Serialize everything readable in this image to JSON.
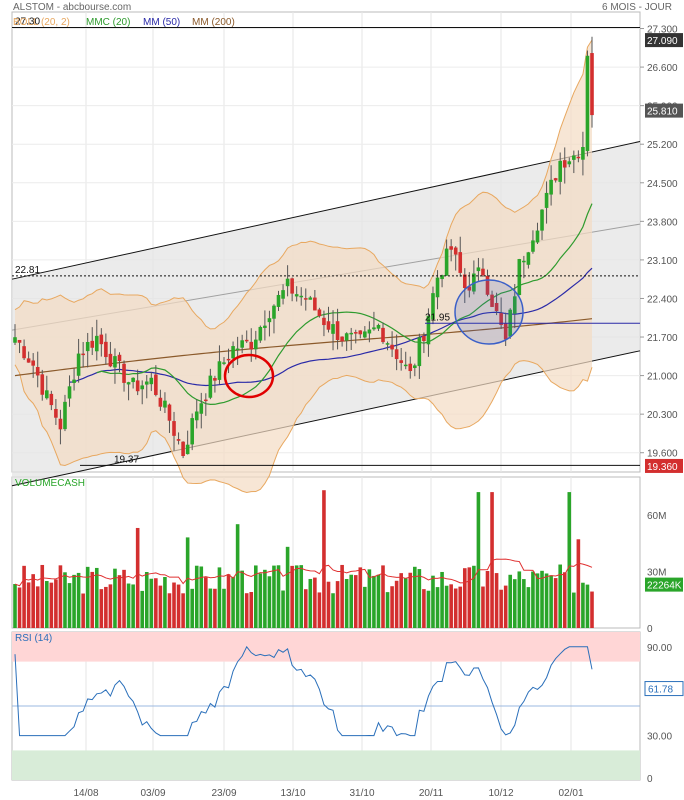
{
  "header": {
    "title": "ALSTOM - abcbourse.com",
    "period": "6 MOIS - JOUR"
  },
  "colors": {
    "up": "#2aa52a",
    "down": "#d32f2f",
    "boll": "#e8a860",
    "bollFill": "#f3dcc3",
    "mmc20": "#2e9b2e",
    "mm50": "#2a2aa8",
    "mm200": "#8b5a2b",
    "channel": "#e4e4e4",
    "rsiHigh": "#ffd6d6",
    "rsiLow": "#d8ecd8",
    "rsiLine": "#2a6fba",
    "volMA": "#e03030",
    "annotRed": "#e00000",
    "annotBlue": "#3a5fc8"
  },
  "legend": [
    {
      "label": "BOLL (20, 2)",
      "color": "#e8a860"
    },
    {
      "label": "MMC (20)",
      "color": "#2e9b2e"
    },
    {
      "label": "MM (50)",
      "color": "#2a2aa8"
    },
    {
      "label": "MM (200)",
      "color": "#8b5a2b"
    }
  ],
  "chart_data": {
    "type": "candlestick",
    "price_ticks": [
      "27.300",
      "26.600",
      "25.900",
      "25.200",
      "24.500",
      "23.800",
      "23.100",
      "22.400",
      "21.700",
      "21.000",
      "20.300",
      "19.600"
    ],
    "price_range": [
      19.25,
      27.6
    ],
    "last_price": "25.810",
    "high_label": "27.090",
    "low_label": "19.360",
    "annotations": {
      "high_line": "27.30",
      "mid_line": "22.81",
      "low_line": "19.37",
      "point": "21.95"
    },
    "x_labels": [
      "14/08",
      "03/09",
      "23/09",
      "13/10",
      "31/10",
      "20/11",
      "10/12",
      "02/01"
    ],
    "volume_title": "VOLUMECASH",
    "volume_ticks": [
      "60M",
      "30M",
      "0"
    ],
    "volume_last": "22264K",
    "rsi_title": "RSI (14)",
    "rsi_ticks": [
      "90.00",
      "30.00",
      "0"
    ],
    "rsi_last": "61.78"
  }
}
